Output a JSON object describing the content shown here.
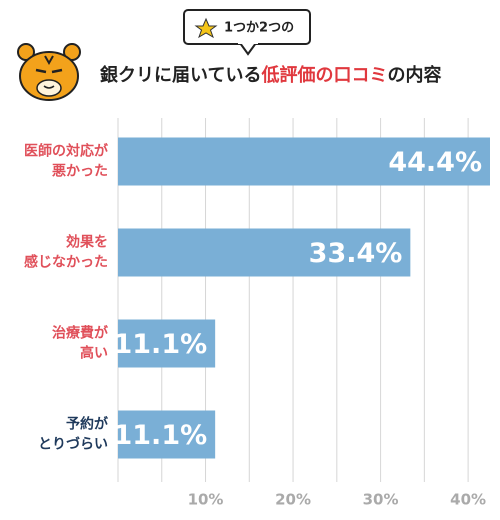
{
  "chart_data": {
    "type": "bar",
    "orientation": "horizontal",
    "badge": "1つか2つの",
    "title_parts": [
      {
        "text": "銀クリに届いている",
        "color": "#222222"
      },
      {
        "text": "低評価の口コミ",
        "color": "#e0383e"
      },
      {
        "text": "の内容",
        "color": "#222222"
      }
    ],
    "categories": [
      [
        "医師の対応が",
        "悪かった"
      ],
      [
        "効果を",
        "感じなかった"
      ],
      [
        "治療費が",
        "高い"
      ],
      [
        "予約が",
        "とりづらい"
      ]
    ],
    "category_colors": [
      "#e0505a",
      "#e0505a",
      "#e0505a",
      "#1f3a5c"
    ],
    "values": [
      44.4,
      33.4,
      11.1,
      11.1
    ],
    "value_labels": [
      "44.4%",
      "33.4%",
      "11.1%",
      "11.1%"
    ],
    "color": "#7aafd6",
    "xlim": [
      0,
      42.5
    ],
    "xticks": [
      {
        "value": 10,
        "label": "10%"
      },
      {
        "value": 20,
        "label": "20%"
      },
      {
        "value": 30,
        "label": "30%"
      },
      {
        "value": 40,
        "label": "40%"
      }
    ],
    "xgrid": [
      0,
      5,
      10,
      15,
      20,
      25,
      30,
      35,
      40
    ]
  }
}
